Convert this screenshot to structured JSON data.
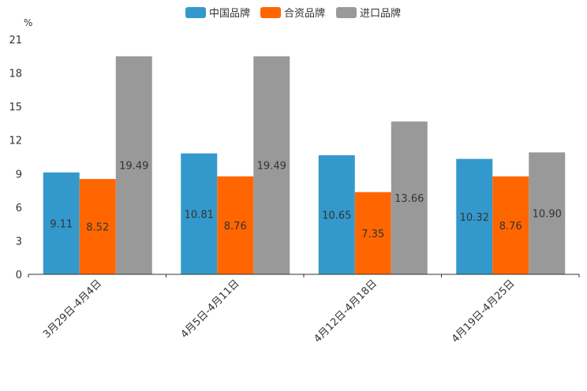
{
  "chart_data": {
    "type": "bar",
    "unit_label": "%",
    "categories": [
      "3月29日-4月4日",
      "4月5日-4月11日",
      "4月12日-4月18日",
      "4月19日-4月25日"
    ],
    "series": [
      {
        "name": "中国品牌",
        "color": "#3399cc",
        "values": [
          9.11,
          10.81,
          10.65,
          10.32
        ],
        "labels": [
          "9.11",
          "10.81",
          "10.65",
          "10.32"
        ]
      },
      {
        "name": "合资品牌",
        "color": "#ff6600",
        "values": [
          8.52,
          8.76,
          7.35,
          8.76
        ],
        "labels": [
          "8.52",
          "8.76",
          "7.35",
          "8.76"
        ]
      },
      {
        "name": "进口品牌",
        "color": "#999999",
        "values": [
          19.49,
          19.49,
          13.66,
          10.9
        ],
        "labels": [
          "19.49",
          "19.49",
          "13.66",
          "10.90"
        ]
      }
    ],
    "yticks": [
      "0",
      "3",
      "6",
      "9",
      "12",
      "15",
      "18",
      "21"
    ],
    "ylim": [
      0,
      21
    ],
    "legend_position": "top-center",
    "grid": false
  }
}
